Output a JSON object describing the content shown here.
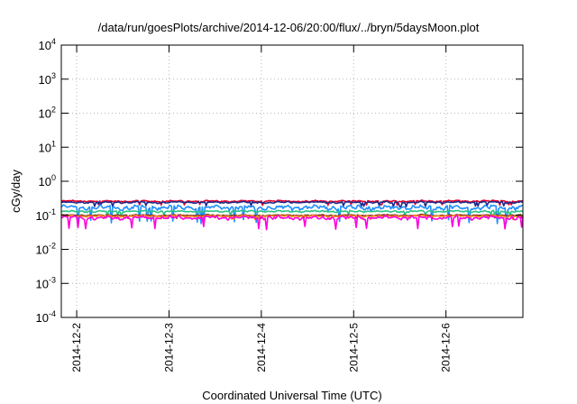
{
  "chart_data": {
    "type": "line",
    "title": "/data/run/goesPlots/archive/2014-12-06/20:00/flux/../bryn/5daysMoon.plot",
    "xlabel": "Coordinated Universal Time (UTC)",
    "ylabel": "cGy/day",
    "y_scale": "log",
    "ylim": [
      0.0001,
      10000
    ],
    "y_ticks": [
      {
        "base": "10",
        "exp": "4",
        "value": 10000
      },
      {
        "base": "10",
        "exp": "3",
        "value": 1000
      },
      {
        "base": "10",
        "exp": "2",
        "value": 100
      },
      {
        "base": "10",
        "exp": "1",
        "value": 10
      },
      {
        "base": "10",
        "exp": "0",
        "value": 1
      },
      {
        "base": "10",
        "exp": "-1",
        "value": 0.1
      },
      {
        "base": "10",
        "exp": "-2",
        "value": 0.01
      },
      {
        "base": "10",
        "exp": "-3",
        "value": 0.001
      },
      {
        "base": "10",
        "exp": "-4",
        "value": 0.0001
      }
    ],
    "xlim": [
      "2014-12-01T20:00",
      "2014-12-06T20:00"
    ],
    "x_ticks": [
      {
        "label": "2014-12-2",
        "date": "2014-12-02T00:00"
      },
      {
        "label": "2014-12-3",
        "date": "2014-12-03T00:00"
      },
      {
        "label": "2014-12-4",
        "date": "2014-12-04T00:00"
      },
      {
        "label": "2014-12-5",
        "date": "2014-12-05T00:00"
      },
      {
        "label": "2014-12-6",
        "date": "2014-12-06T00:00"
      }
    ],
    "grid": true,
    "series": [
      {
        "color": "#e8002a",
        "level": 0.26,
        "spread": 0.1
      },
      {
        "color": "#1f2a8a",
        "level": 0.24,
        "spread": 0.1
      },
      {
        "color": "#1f8fff",
        "level": 0.17,
        "spread": 0.28
      },
      {
        "color": "#27c283",
        "level": 0.13,
        "spread": 0.1
      },
      {
        "color": "#7a2b1b",
        "level": 0.1,
        "spread": 0.08
      },
      {
        "color": "#ff8a1a",
        "level": 0.095,
        "spread": 0.08
      },
      {
        "color": "#ff00dd",
        "level": 0.085,
        "spread": 0.22
      }
    ]
  }
}
